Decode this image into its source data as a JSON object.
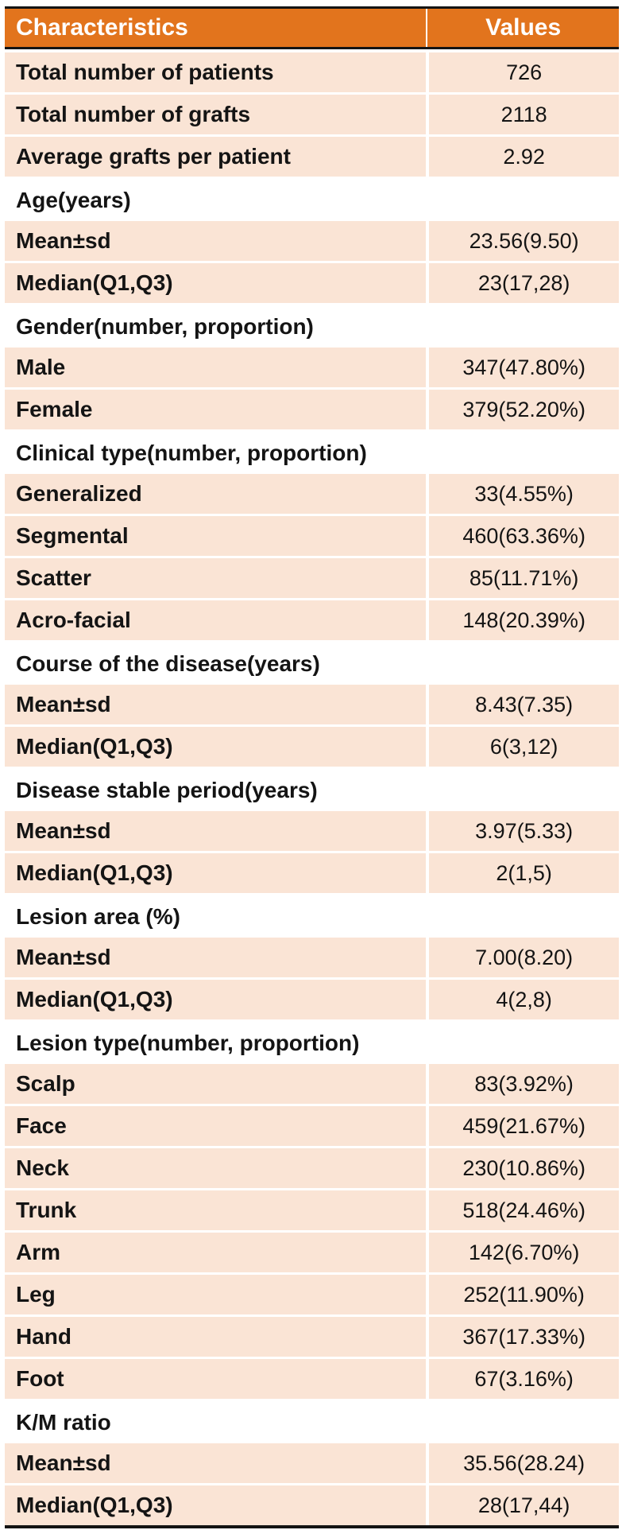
{
  "colors": {
    "header_bg": "#E2741D",
    "header_text": "#FFFFFF",
    "row_bg": "#FAE4D5",
    "ink": "#141414",
    "divider": "#FFFFFF"
  },
  "table": {
    "columns": [
      "Characteristics",
      "Values"
    ],
    "rows": [
      {
        "type": "data",
        "label": "Total number of patients",
        "value": "726"
      },
      {
        "type": "data",
        "label": "Total number of grafts",
        "value": "2118"
      },
      {
        "type": "data",
        "label": "Average grafts per patient",
        "value": "2.92"
      },
      {
        "type": "section",
        "label": "Age(years)"
      },
      {
        "type": "data",
        "label": "Mean±sd",
        "value": "23.56(9.50)"
      },
      {
        "type": "data",
        "label": "Median(Q1,Q3)",
        "value": "23(17,28)"
      },
      {
        "type": "section",
        "label": "Gender(number, proportion)"
      },
      {
        "type": "data",
        "label": "Male",
        "value": "347(47.80%)"
      },
      {
        "type": "data",
        "label": "Female",
        "value": "379(52.20%)"
      },
      {
        "type": "section",
        "label": "Clinical type(number, proportion)"
      },
      {
        "type": "data",
        "label": "Generalized",
        "value": "33(4.55%)"
      },
      {
        "type": "data",
        "label": "Segmental",
        "value": "460(63.36%)"
      },
      {
        "type": "data",
        "label": "Scatter",
        "value": "85(11.71%)"
      },
      {
        "type": "data",
        "label": "Acro-facial",
        "value": "148(20.39%)"
      },
      {
        "type": "section",
        "label": "Course of the disease(years)"
      },
      {
        "type": "data",
        "label": "Mean±sd",
        "value": "8.43(7.35)"
      },
      {
        "type": "data",
        "label": "Median(Q1,Q3)",
        "value": "6(3,12)"
      },
      {
        "type": "section",
        "label": "Disease stable period(years)"
      },
      {
        "type": "data",
        "label": "Mean±sd",
        "value": "3.97(5.33)"
      },
      {
        "type": "data",
        "label": "Median(Q1,Q3)",
        "value": "2(1,5)"
      },
      {
        "type": "section",
        "label": "Lesion area (%)"
      },
      {
        "type": "data",
        "label": "Mean±sd",
        "value": "7.00(8.20)"
      },
      {
        "type": "data",
        "label": "Median(Q1,Q3)",
        "value": "4(2,8)"
      },
      {
        "type": "section",
        "label": "Lesion type(number, proportion)"
      },
      {
        "type": "data",
        "label": "Scalp",
        "value": "83(3.92%)"
      },
      {
        "type": "data",
        "label": "Face",
        "value": "459(21.67%)"
      },
      {
        "type": "data",
        "label": "Neck",
        "value": "230(10.86%)"
      },
      {
        "type": "data",
        "label": "Trunk",
        "value": "518(24.46%)"
      },
      {
        "type": "data",
        "label": "Arm",
        "value": "142(6.70%)"
      },
      {
        "type": "data",
        "label": "Leg",
        "value": "252(11.90%)"
      },
      {
        "type": "data",
        "label": "Hand",
        "value": "367(17.33%)"
      },
      {
        "type": "data",
        "label": "Foot",
        "value": "67(3.16%)"
      },
      {
        "type": "section",
        "label": "K/M ratio"
      },
      {
        "type": "data",
        "label": "Mean±sd",
        "value": "35.56(28.24)"
      },
      {
        "type": "data",
        "label": "Median(Q1,Q3)",
        "value": "28(17,44)"
      }
    ]
  }
}
